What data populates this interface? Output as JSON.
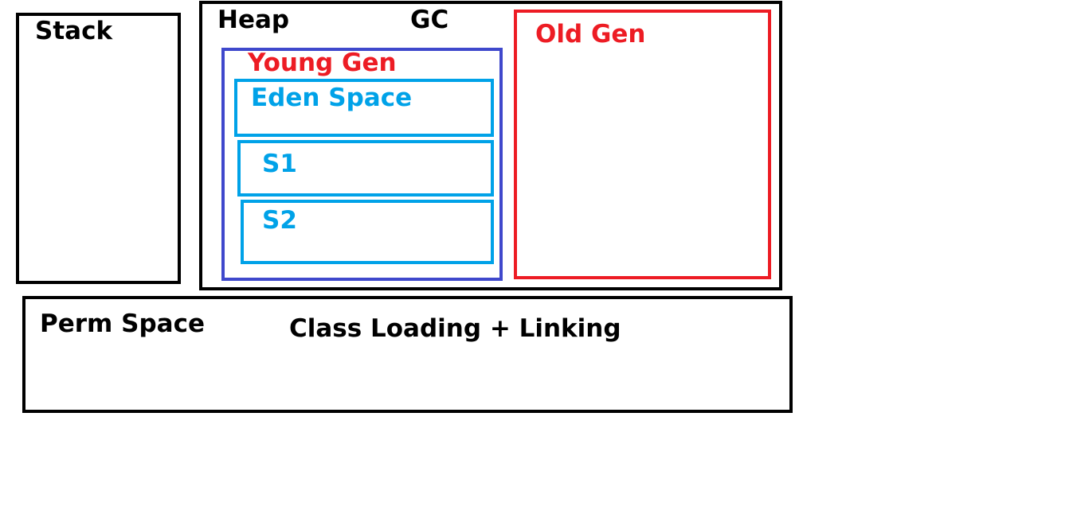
{
  "colors": {
    "black": "#000000",
    "young_gen": "#3f48cc",
    "eden_survivor": "#00a2e8",
    "old_gen": "#ed1c24"
  },
  "stack": {
    "label": "Stack"
  },
  "heap": {
    "label": "Heap",
    "gc_label": "GC",
    "young_gen": {
      "label": "Young Gen",
      "eden": {
        "label": "Eden Space"
      },
      "s1": {
        "label": "S1"
      },
      "s2": {
        "label": "S2"
      }
    },
    "old_gen": {
      "label": "Old Gen"
    }
  },
  "perm_space": {
    "label": "Perm Space",
    "note": "Class Loading + Linking"
  }
}
